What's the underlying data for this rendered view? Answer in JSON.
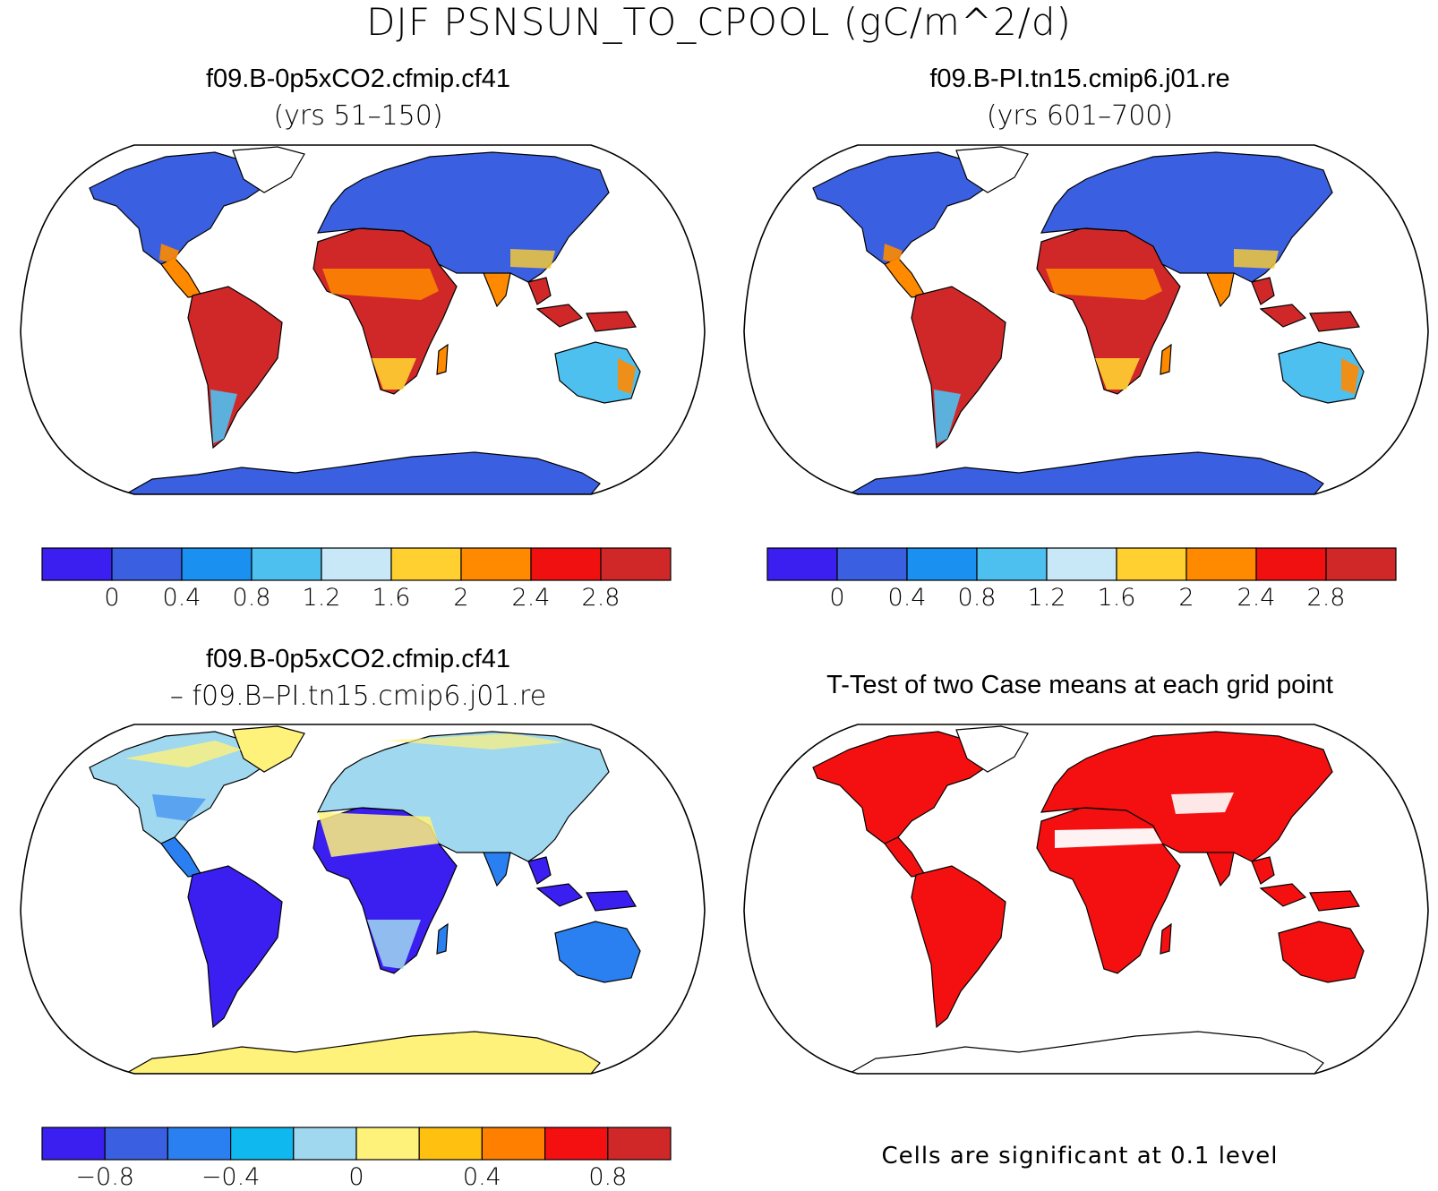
{
  "title": "DJF PSNSUN_TO_CPOOL (gC/m^2/d)",
  "panels": {
    "case1": {
      "name": "f09.B-0p5xCO2.cfmip.cf41",
      "subtitle": "(yrs 51–150)"
    },
    "case2": {
      "name": "f09.B-PI.tn15.cmip6.j01.re",
      "subtitle": "(yrs 601–700)"
    },
    "diff": {
      "name": "f09.B-0p5xCO2.cfmip.cf41",
      "subtitle": "– f09.B–PI.tn15.cmip6.j01.re"
    },
    "ttest": {
      "name": "T-Test of two Case means at each grid point",
      "footnote": "Cells are significant at 0.1 level"
    }
  },
  "colorbars": {
    "abs": {
      "colors": [
        "#3a1ff0",
        "#3a5fe0",
        "#1a90f0",
        "#4ec0f0",
        "#c8e8f8",
        "#ffd030",
        "#ff8a00",
        "#f01010",
        "#d02828"
      ],
      "labels": [
        "0",
        "0.4",
        "0.8",
        "1.2",
        "1.6",
        "2",
        "2.4",
        "2.8"
      ]
    },
    "diff": {
      "colors": [
        "#3a1ff0",
        "#3a5fe0",
        "#2a80f0",
        "#10b8f0",
        "#a0d8f0",
        "#fff27a",
        "#ffc010",
        "#ff8000",
        "#f41010",
        "#d02828"
      ],
      "labels": [
        "−0.8",
        "−0.4",
        "0",
        "0.4",
        "0.8"
      ]
    }
  },
  "map_colors": {
    "land_low": "#3a5fe0",
    "land_mid": "#4ec0f0",
    "land_warm": "#ffd030",
    "land_orange": "#ff8a00",
    "land_high": "#d02828",
    "diff_base": "#a0d8f0",
    "diff_neg": "#3a1ff0",
    "diff_negmid": "#2a80f0",
    "diff_pos": "#fff27a",
    "ttest_sig": "#f41010",
    "outline": "#000000"
  }
}
